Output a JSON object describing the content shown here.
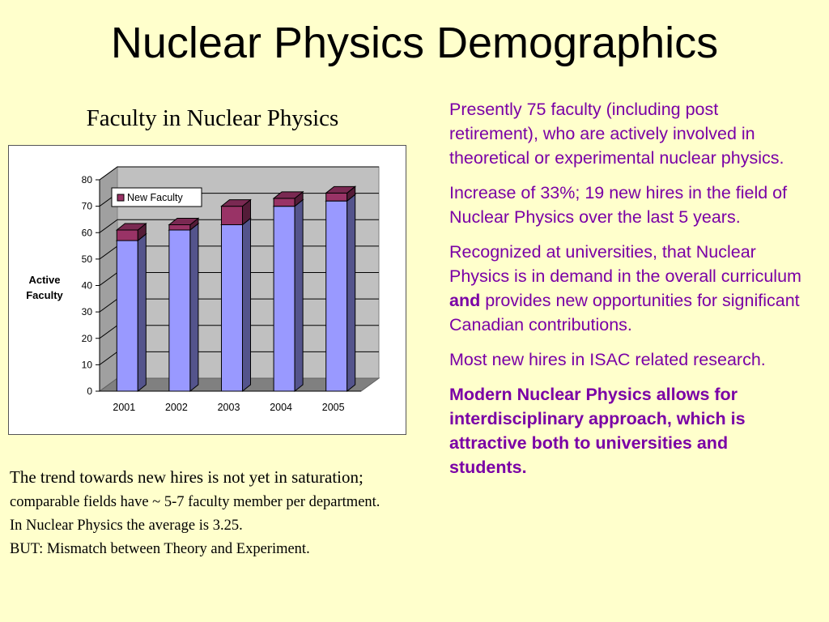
{
  "slide": {
    "title": "Nuclear Physics Demographics",
    "chart_heading": "Faculty in Nuclear Physics",
    "trend_text": {
      "part1": "The trend towards new hires is not yet in saturation;",
      "part2": "comparable fields have ~ 5-7 faculty member per department. In Nuclear Physics the average is 3.25.",
      "part3": "BUT: Mismatch between Theory and Experiment."
    },
    "bullets": {
      "b1": "Presently 75 faculty (including post retirement), who are actively involved in theoretical or experimental nuclear physics.",
      "b2": "Increase of 33%; 19 new hires in the field of  Nuclear Physics over the last 5 years.",
      "b3_pre": "Recognized at universities, that Nuclear Physics is in demand in the overall curriculum",
      "b3_bold": "and",
      "b3_post": "provides new opportunities for significant Canadian contributions.",
      "b4": "Most new hires in ISAC related research.",
      "b5": "Modern Nuclear Physics allows for interdisciplinary approach, which is attractive both to universities and students."
    },
    "colors": {
      "background": "#ffffcc",
      "bullet_text": "#7a00a6",
      "base_bar": "#9999ff",
      "new_faculty": "#993366"
    }
  },
  "chart_data": {
    "type": "bar",
    "stacked": true,
    "three_d": true,
    "categories": [
      "2001",
      "2002",
      "2003",
      "2004",
      "2005"
    ],
    "series": [
      {
        "values": [
          57,
          61,
          63,
          70,
          72
        ]
      },
      {
        "name": "New  Faculty",
        "values": [
          4,
          2,
          7,
          3,
          3
        ]
      }
    ],
    "ylabel_lines": [
      "Active",
      "Faculty"
    ],
    "xlabel": "",
    "ylim": [
      0,
      80
    ],
    "yticks": [
      0,
      10,
      20,
      30,
      40,
      50,
      60,
      70,
      80
    ],
    "grid": true,
    "legend": {
      "position": "top-left",
      "entries": [
        "New  Faculty"
      ]
    }
  }
}
